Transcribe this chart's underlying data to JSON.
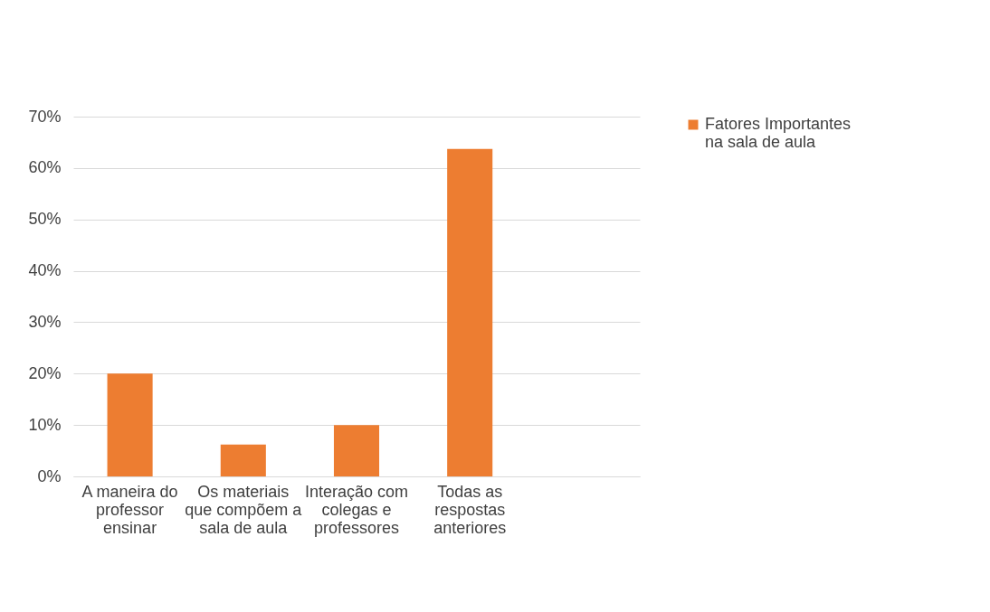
{
  "chart_data": {
    "type": "bar",
    "categories": [
      "A maneira do professor ensinar",
      "Os materiais que compõem a sala de aula",
      "Interação com colegas e professores",
      "Todas as respostas anteriores",
      null
    ],
    "series": [
      {
        "name": "Fatores Importantes na sala de aula",
        "color": "#ed7d31",
        "values": [
          20,
          6.2,
          10,
          63.7,
          null
        ]
      }
    ],
    "ylim": [
      0,
      70
    ],
    "yticks": [
      {
        "value": 0,
        "label": "0%"
      },
      {
        "value": 10,
        "label": "10%"
      },
      {
        "value": 20,
        "label": "20%"
      },
      {
        "value": 30,
        "label": "30%"
      },
      {
        "value": 40,
        "label": "40%"
      },
      {
        "value": 50,
        "label": "50%"
      },
      {
        "value": 60,
        "label": "60%"
      },
      {
        "value": 70,
        "label": "70%"
      }
    ],
    "grid": "y",
    "legend": "right"
  }
}
